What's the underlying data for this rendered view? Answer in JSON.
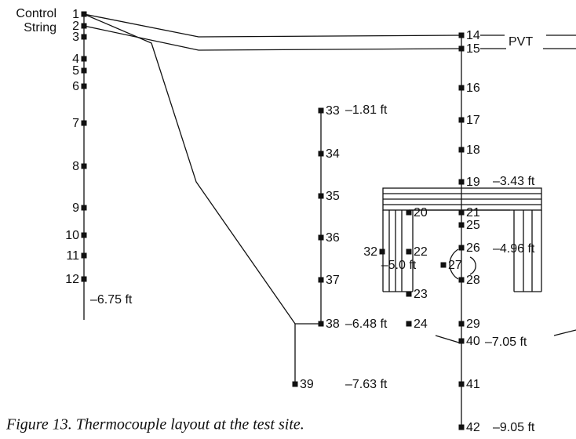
{
  "string_label": [
    "Control",
    "String"
  ],
  "nodes": [
    "1",
    "2",
    "3",
    "4",
    "5",
    "6",
    "7",
    "8",
    "9",
    "10",
    "11",
    "12",
    "14",
    "15",
    "16",
    "17",
    "18",
    "19",
    "20",
    "21",
    "22",
    "23",
    "24",
    "25",
    "26",
    "27",
    "28",
    "29",
    "32",
    "33",
    "34",
    "35",
    "36",
    "37",
    "38",
    "39",
    "40",
    "41",
    "42"
  ],
  "depths": [
    "–6.75 ft",
    "–1.81 ft",
    "–6.48 ft",
    "–7.63 ft",
    "–3.43 ft",
    "–4.96 ft",
    "–5.0 ft",
    "–7.05 ft",
    "–9.05 ft"
  ],
  "marker": "PVT",
  "caption": "Figure 13. Thermocouple layout at the test site."
}
